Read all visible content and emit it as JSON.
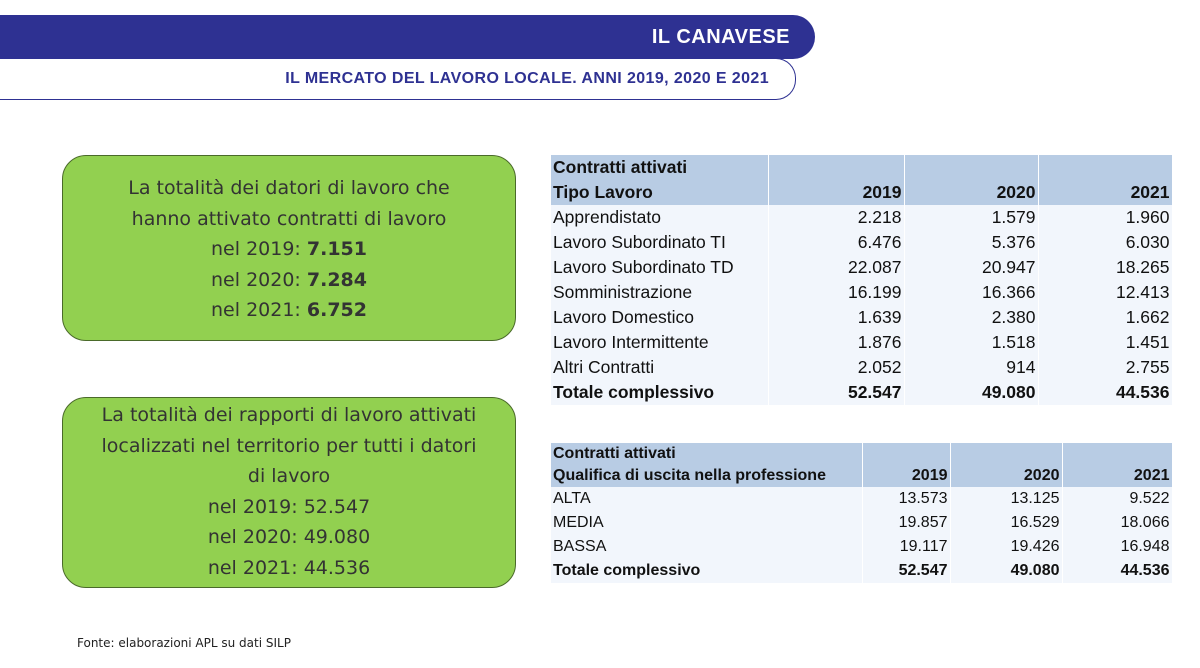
{
  "header": {
    "title": "IL CANAVESE",
    "subtitle": "IL MERCATO DEL LAVORO LOCALE. ANNI 2019, 2020 E 2021"
  },
  "box1": {
    "lines": [
      "La totalità dei datori di lavoro che",
      "hanno attivato contratti di lavoro"
    ],
    "items": [
      {
        "label": "nel 2019:",
        "value": "7.151"
      },
      {
        "label": "nel 2020:",
        "value": "7.284"
      },
      {
        "label": "nel 2021:",
        "value": "6.752"
      }
    ]
  },
  "box2": {
    "lines": [
      "La totalità dei rapporti di lavoro attivati",
      "localizzati nel territorio per tutti i datori",
      "di lavoro"
    ],
    "items": [
      {
        "label": "nel 2019:",
        "value": "52.547"
      },
      {
        "label": "nel 2020:",
        "value": "49.080"
      },
      {
        "label": "nel 2021:",
        "value": "44.536"
      }
    ]
  },
  "table1": {
    "caption": "Contratti attivati",
    "columns": [
      "Tipo Lavoro",
      "2019",
      "2020",
      "2021"
    ],
    "rows": [
      [
        "Apprendistato",
        "2.218",
        "1.579",
        "1.960"
      ],
      [
        "Lavoro Subordinato TI",
        "6.476",
        "5.376",
        "6.030"
      ],
      [
        "Lavoro Subordinato TD",
        "22.087",
        "20.947",
        "18.265"
      ],
      [
        "Somministrazione",
        "16.199",
        "16.366",
        "12.413"
      ],
      [
        "Lavoro Domestico",
        "1.639",
        "2.380",
        "1.662"
      ],
      [
        "Lavoro Intermittente",
        "1.876",
        "1.518",
        "1.451"
      ],
      [
        "Altri Contratti",
        "2.052",
        "914",
        "2.755"
      ]
    ],
    "total": [
      "Totale complessivo",
      "52.547",
      "49.080",
      "44.536"
    ]
  },
  "table2": {
    "caption": "Contratti attivati",
    "columns": [
      "Qualifica di uscita nella professione",
      "2019",
      "2020",
      "2021"
    ],
    "rows": [
      [
        "ALTA",
        "13.573",
        "13.125",
        "9.522"
      ],
      [
        "MEDIA",
        "19.857",
        "16.529",
        "18.066"
      ],
      [
        "BASSA",
        "19.117",
        "19.426",
        "16.948"
      ]
    ],
    "total": [
      "Totale complessivo",
      "52.547",
      "49.080",
      "44.536"
    ]
  },
  "footer": "Fonte: elaborazioni APL su dati SILP"
}
